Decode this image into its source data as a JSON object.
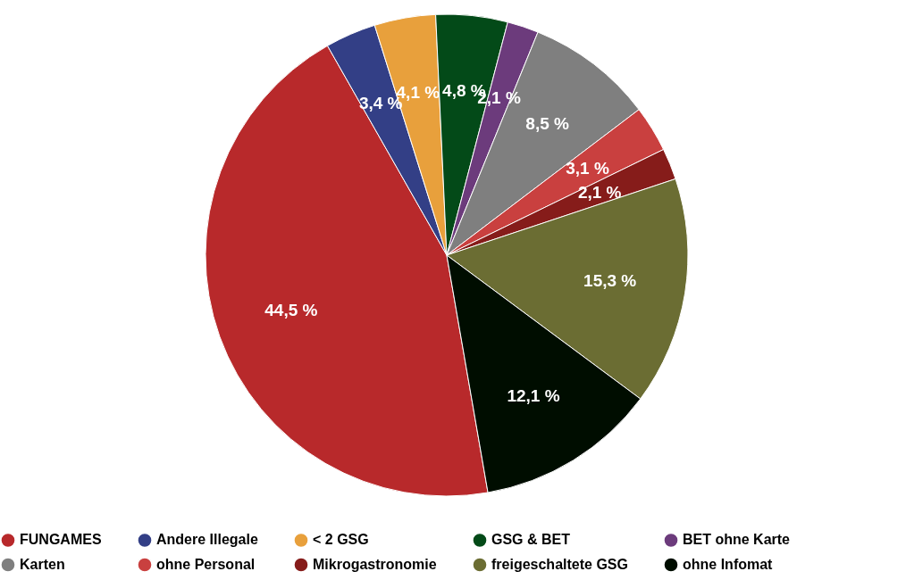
{
  "chart_data": {
    "type": "pie",
    "categories": [
      "FUNGAMES",
      "Andere Illegale",
      "< 2 GSG",
      "GSG & BET",
      "BET ohne Karte",
      "Karten",
      "ohne Personal",
      "Mikrogastronomie",
      "freigeschaltete GSG",
      "ohne Infomat"
    ],
    "values": [
      44.5,
      3.4,
      4.1,
      4.8,
      2.1,
      8.5,
      3.1,
      2.1,
      15.3,
      12.1
    ],
    "colors": [
      "#b8292b",
      "#333f86",
      "#e8a03c",
      "#034a18",
      "#6c3b7c",
      "#7f7f7f",
      "#c9403f",
      "#861c1a",
      "#6b6d33",
      "#000d00"
    ],
    "value_labels": [
      "44,5 %",
      "3,4 %",
      "4,1 %",
      "4,8 %",
      "2,1 %",
      "8,5 %",
      "3,1 %",
      "2,1 %",
      "15,3 %",
      "12,1 %"
    ],
    "legend": "bottom"
  }
}
